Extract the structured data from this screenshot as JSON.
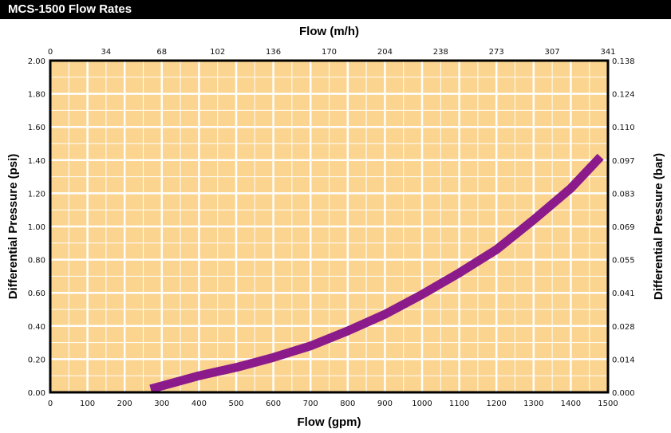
{
  "title": "MCS-1500 Flow Rates",
  "colors": {
    "plot_bg": "#fbd48f",
    "grid": "#ffffff",
    "curve": "#8b1a8b",
    "frame": "#000000"
  },
  "chart_data": {
    "type": "line",
    "title": "MCS-1500 Flow Rates",
    "xlabel": "Flow (gpm)",
    "x2label": "Flow (m/h)",
    "ylabel": "Differential Pressure (psi)",
    "y2label": "Differential Pressure (bar)",
    "xlim": [
      0,
      1500
    ],
    "ylim": [
      0,
      2.0
    ],
    "x_ticks": [
      "0",
      "100",
      "200",
      "300",
      "400",
      "500",
      "600",
      "700",
      "800",
      "900",
      "1000",
      "1100",
      "1200",
      "1300",
      "1400",
      "1500"
    ],
    "x2_ticks": [
      "0",
      "34",
      "68",
      "102",
      "136",
      "170",
      "204",
      "238",
      "273",
      "307",
      "341"
    ],
    "y_ticks": [
      "0.00",
      "0.20",
      "0.40",
      "0.60",
      "0.80",
      "1.00",
      "1.20",
      "1.40",
      "1.60",
      "1.80",
      "2.00"
    ],
    "y2_ticks": [
      "0.000",
      "0.014",
      "0.028",
      "0.041",
      "0.055",
      "0.069",
      "0.083",
      "0.097",
      "0.110",
      "0.124",
      "0.138"
    ],
    "grid": true,
    "series": [
      {
        "x": [
          270,
          400,
          500,
          600,
          700,
          800,
          900,
          1000,
          1100,
          1200,
          1300,
          1400,
          1480
        ],
        "y": [
          0.02,
          0.1,
          0.15,
          0.21,
          0.28,
          0.37,
          0.47,
          0.59,
          0.72,
          0.86,
          1.04,
          1.23,
          1.42
        ]
      }
    ]
  }
}
